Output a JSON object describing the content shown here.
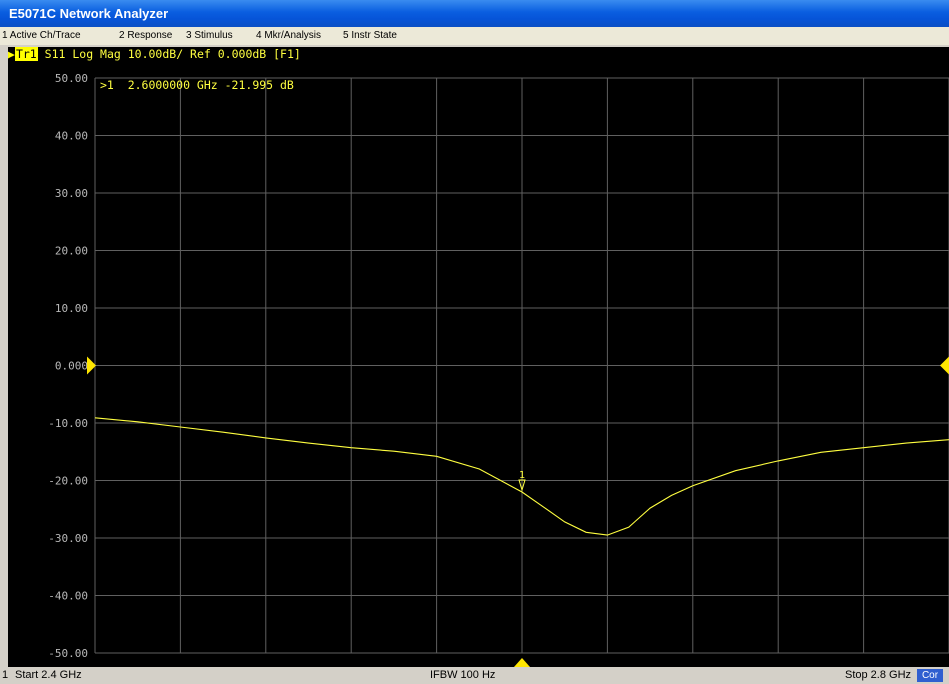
{
  "window": {
    "title": "E5071C Network Analyzer"
  },
  "menu": [
    {
      "label": "1 Active Ch/Trace"
    },
    {
      "label": "2 Response"
    },
    {
      "label": "3 Stimulus"
    },
    {
      "label": "4 Mkr/Analysis"
    },
    {
      "label": "5 Instr State"
    }
  ],
  "trace": {
    "active_tag": "Tr1",
    "description": "S11 Log Mag 10.00dB/ Ref 0.000dB [F1]"
  },
  "marker_readout": ">1  2.6000000 GHz -21.995 dB",
  "marker_label": "1",
  "status": {
    "channel": "1",
    "start": "Start 2.4 GHz",
    "ifbw": "IFBW 100 Hz",
    "stop": "Stop 2.8 GHz",
    "correction": "Cor"
  },
  "colors": {
    "trace": "#ffff40",
    "grid": "#606060",
    "screen_bg": "#000000",
    "titlebar": "#0a5ee0"
  },
  "chart_data": {
    "type": "line",
    "y_tick_labels": [
      "50.00",
      "40.00",
      "30.00",
      "20.00",
      "10.00",
      "0.000",
      "-10.00",
      "-20.00",
      "-30.00",
      "-40.00",
      "-50.00"
    ],
    "ylim": [
      -50,
      50
    ],
    "xlim": [
      2.4,
      2.8
    ],
    "x_unit": "GHz",
    "y_unit": "dB",
    "reference_level": 0,
    "grid": true,
    "series": [
      {
        "x": [
          2.4,
          2.42,
          2.44,
          2.46,
          2.48,
          2.5,
          2.52,
          2.54,
          2.56,
          2.58,
          2.6,
          2.61,
          2.62,
          2.63,
          2.64,
          2.65,
          2.66,
          2.67,
          2.68,
          2.7,
          2.72,
          2.74,
          2.76,
          2.78,
          2.8
        ],
        "y": [
          -9.1,
          -9.8,
          -10.7,
          -11.6,
          -12.6,
          -13.5,
          -14.3,
          -14.9,
          -15.8,
          -18.0,
          -21.995,
          -24.6,
          -27.2,
          -29.0,
          -29.5,
          -28.1,
          -24.8,
          -22.6,
          -20.9,
          -18.3,
          -16.6,
          -15.1,
          -14.3,
          -13.5,
          -12.9
        ]
      }
    ],
    "marker": {
      "number": "1",
      "x": 2.6,
      "y": -21.995
    }
  }
}
